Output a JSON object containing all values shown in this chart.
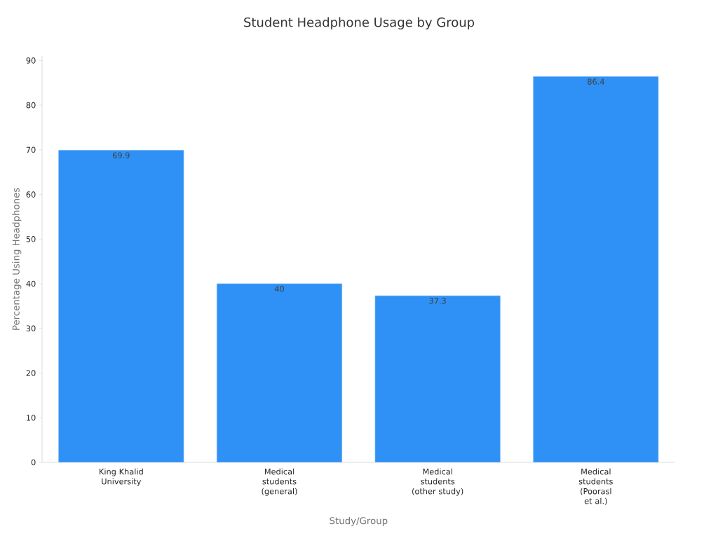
{
  "chart_data": {
    "type": "bar",
    "title": "Student Headphone Usage by Group",
    "xlabel": "Study/Group",
    "ylabel": "Percentage Using Headphones",
    "categories": [
      "King Khalid University",
      "Medical students (general)",
      "Medical students (other study)",
      "Medical students (Poorasl et al.)"
    ],
    "values": [
      69.9,
      40,
      37.3,
      86.4
    ],
    "color": "#2f91f5",
    "ylim": [
      0,
      91
    ],
    "yticks": [
      0,
      10,
      20,
      30,
      40,
      50,
      60,
      70,
      80,
      90
    ],
    "data_labels": true,
    "grid": false
  }
}
